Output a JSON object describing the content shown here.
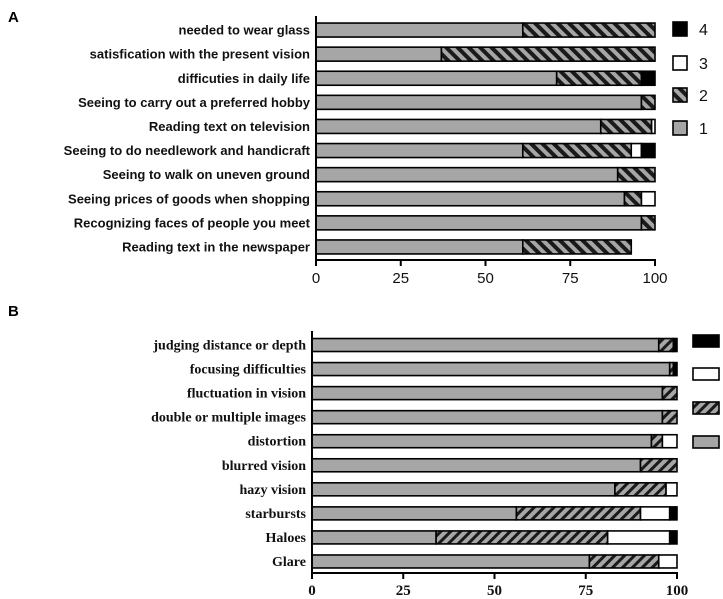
{
  "chart_data": [
    {
      "panel": "A",
      "type": "bar",
      "stacked": true,
      "orientation": "horizontal",
      "categories": [
        "needed to wear glass",
        "satisfication with the present vision",
        "difficuties in daily life",
        "Seeing to carry out a preferred hobby",
        "Reading text on television",
        "Seeing to do needlework and handicraft",
        "Seeing to walk on uneven ground",
        "Seeing prices of goods when shopping",
        "Recognizing faces of people you meet",
        "Reading text in the newspaper"
      ],
      "series": [
        {
          "name": "1",
          "values": [
            61,
            37,
            71,
            96,
            84,
            61,
            89,
            91,
            96,
            61
          ]
        },
        {
          "name": "2",
          "values": [
            39,
            63,
            25,
            4,
            15,
            32,
            11,
            5,
            4,
            32
          ]
        },
        {
          "name": "3",
          "values": [
            0,
            0,
            0,
            0,
            1,
            3,
            0,
            4,
            0,
            0
          ]
        },
        {
          "name": "4",
          "values": [
            0,
            0,
            4,
            0,
            0,
            4,
            0,
            0,
            0,
            0
          ]
        }
      ],
      "xlim": [
        0,
        100
      ],
      "xticks": [
        "0",
        "25",
        "50",
        "75",
        "100"
      ],
      "legend": [
        "4",
        "3",
        "2",
        "1"
      ],
      "legend_position": "right"
    },
    {
      "panel": "B",
      "type": "bar",
      "stacked": true,
      "orientation": "horizontal",
      "categories": [
        "judging distance or depth",
        "focusing difficulties",
        "fluctuation in vision",
        "double or multiple images",
        "distortion",
        "blurred vision",
        "hazy vision",
        "starbursts",
        "Haloes",
        "Glare"
      ],
      "series": [
        {
          "values": [
            95,
            98,
            96,
            96,
            93,
            90,
            83,
            56,
            34,
            76
          ]
        },
        {
          "values": [
            4,
            1,
            4,
            4,
            3,
            10,
            14,
            34,
            47,
            19
          ]
        },
        {
          "values": [
            0,
            0,
            0,
            0,
            4,
            0,
            3,
            8,
            17,
            5
          ]
        },
        {
          "values": [
            1,
            1,
            0,
            0,
            0,
            0,
            0,
            2,
            2,
            0
          ]
        }
      ],
      "xlim": [
        0,
        100
      ],
      "xticks": [
        "0",
        "25",
        "50",
        "75",
        "100"
      ],
      "legend_position": "right"
    }
  ],
  "colors": {
    "level1": "#a6a6a6",
    "level3": "#ffffff",
    "level4": "#000000",
    "stroke": "#000000"
  }
}
